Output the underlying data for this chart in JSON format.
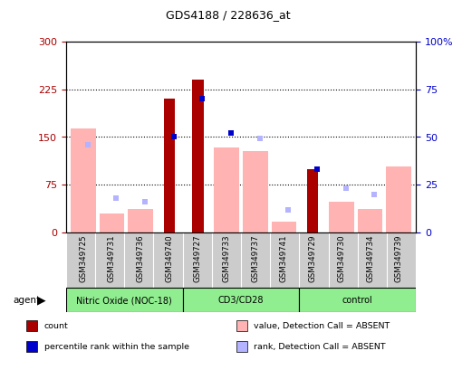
{
  "title": "GDS4188 / 228636_at",
  "samples": [
    "GSM349725",
    "GSM349731",
    "GSM349736",
    "GSM349740",
    "GSM349727",
    "GSM349733",
    "GSM349737",
    "GSM349741",
    "GSM349729",
    "GSM349730",
    "GSM349734",
    "GSM349739"
  ],
  "groups": [
    {
      "label": "Nitric Oxide (NOC-18)",
      "span": 4
    },
    {
      "label": "CD3/CD28",
      "span": 4
    },
    {
      "label": "control",
      "span": 4
    }
  ],
  "count_values": [
    null,
    null,
    null,
    210,
    240,
    null,
    null,
    null,
    100,
    null,
    null,
    null
  ],
  "rank_pct": [
    null,
    null,
    null,
    50,
    70,
    52,
    null,
    null,
    33,
    null,
    null,
    null
  ],
  "absent_value": [
    163,
    30,
    37,
    null,
    null,
    133,
    128,
    17,
    null,
    48,
    37,
    103
  ],
  "absent_rank_pct": [
    46,
    18,
    16,
    null,
    null,
    null,
    49,
    12,
    null,
    23,
    20,
    null
  ],
  "ylim": [
    0,
    300
  ],
  "yticks_left": [
    0,
    75,
    150,
    225,
    300
  ],
  "ytick_labels_left": [
    "0",
    "75",
    "150",
    "225",
    "300"
  ],
  "yticks_right": [
    0,
    25,
    50,
    75,
    100
  ],
  "ytick_labels_right": [
    "0",
    "25",
    "50",
    "75",
    "100%"
  ],
  "color_count": "#aa0000",
  "color_rank": "#0000cc",
  "color_absent_value": "#ffb3b3",
  "color_absent_rank": "#b3b3ff",
  "group_color": "#90EE90",
  "label_bg": "#cccccc",
  "legend": [
    {
      "label": "count",
      "color": "#aa0000"
    },
    {
      "label": "percentile rank within the sample",
      "color": "#0000cc"
    },
    {
      "label": "value, Detection Call = ABSENT",
      "color": "#ffb3b3"
    },
    {
      "label": "rank, Detection Call = ABSENT",
      "color": "#b3b3ff"
    }
  ]
}
